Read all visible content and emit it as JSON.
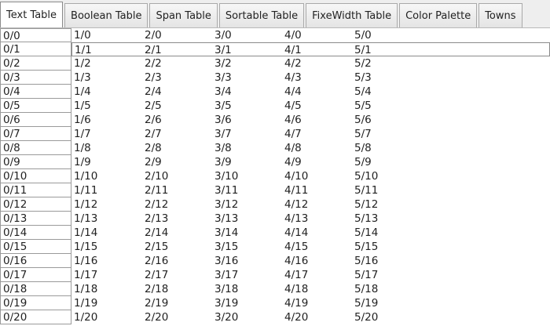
{
  "tabs": [
    {
      "label": "Text Table",
      "selected": true
    },
    {
      "label": "Boolean Table",
      "selected": false
    },
    {
      "label": "Span Table",
      "selected": false
    },
    {
      "label": "Sortable Table",
      "selected": false
    },
    {
      "label": "FixeWidth Table",
      "selected": false
    },
    {
      "label": "Color Palette",
      "selected": false
    },
    {
      "label": "Towns",
      "selected": false
    }
  ],
  "table": {
    "selected_row": 1,
    "rows": [
      [
        "0/0",
        "1/0",
        "2/0",
        "3/0",
        "4/0",
        "5/0"
      ],
      [
        "0/1",
        "1/1",
        "2/1",
        "3/1",
        "4/1",
        "5/1"
      ],
      [
        "0/2",
        "1/2",
        "2/2",
        "3/2",
        "4/2",
        "5/2"
      ],
      [
        "0/3",
        "1/3",
        "2/3",
        "3/3",
        "4/3",
        "5/3"
      ],
      [
        "0/4",
        "1/4",
        "2/4",
        "3/4",
        "4/4",
        "5/4"
      ],
      [
        "0/5",
        "1/5",
        "2/5",
        "3/5",
        "4/5",
        "5/5"
      ],
      [
        "0/6",
        "1/6",
        "2/6",
        "3/6",
        "4/6",
        "5/6"
      ],
      [
        "0/7",
        "1/7",
        "2/7",
        "3/7",
        "4/7",
        "5/7"
      ],
      [
        "0/8",
        "1/8",
        "2/8",
        "3/8",
        "4/8",
        "5/8"
      ],
      [
        "0/9",
        "1/9",
        "2/9",
        "3/9",
        "4/9",
        "5/9"
      ],
      [
        "0/10",
        "1/10",
        "2/10",
        "3/10",
        "4/10",
        "5/10"
      ],
      [
        "0/11",
        "1/11",
        "2/11",
        "3/11",
        "4/11",
        "5/11"
      ],
      [
        "0/12",
        "1/12",
        "2/12",
        "3/12",
        "4/12",
        "5/12"
      ],
      [
        "0/13",
        "1/13",
        "2/13",
        "3/13",
        "4/13",
        "5/13"
      ],
      [
        "0/14",
        "1/14",
        "2/14",
        "3/14",
        "4/14",
        "5/14"
      ],
      [
        "0/15",
        "1/15",
        "2/15",
        "3/15",
        "4/15",
        "5/15"
      ],
      [
        "0/16",
        "1/16",
        "2/16",
        "3/16",
        "4/16",
        "5/16"
      ],
      [
        "0/17",
        "1/17",
        "2/17",
        "3/17",
        "4/17",
        "5/17"
      ],
      [
        "0/18",
        "1/18",
        "2/18",
        "3/18",
        "4/18",
        "5/18"
      ],
      [
        "0/19",
        "1/19",
        "2/19",
        "3/19",
        "4/19",
        "5/19"
      ],
      [
        "0/20",
        "1/20",
        "2/20",
        "3/20",
        "4/20",
        "5/20"
      ]
    ]
  }
}
